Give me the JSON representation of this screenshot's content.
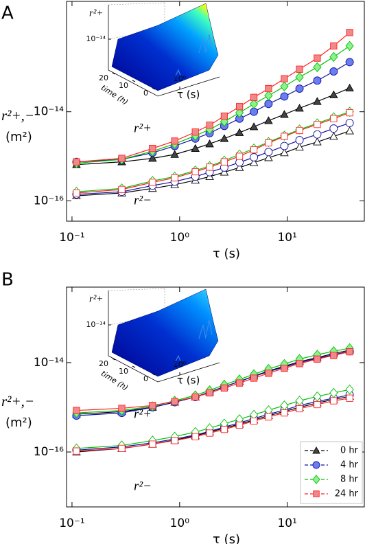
{
  "chart_data": [
    {
      "type": "line",
      "panel": "A",
      "xlabel": "τ (s)",
      "ylabel": "r²+,−",
      "yunit": "(m²)",
      "log_x": true,
      "log_y": true,
      "legend": false,
      "xlim": [
        0.089,
        52
      ],
      "ylim": [
        3.5e-17,
        3e-12
      ],
      "xticks": [
        {
          "value": 0.1,
          "label": "10⁻¹"
        },
        {
          "value": 1,
          "label": "10⁰"
        },
        {
          "value": 10,
          "label": "10¹"
        }
      ],
      "yticks": [
        {
          "value": 1e-16,
          "label": "10⁻¹⁶"
        },
        {
          "value": 1e-14,
          "label": "10⁻¹⁴"
        }
      ],
      "annotations": [
        "r²+",
        "r²−"
      ],
      "x": [
        0.11,
        0.29,
        0.56,
        0.9,
        1.4,
        1.9,
        2.6,
        3.6,
        4.9,
        6.7,
        9.4,
        13,
        19,
        27,
        38
      ],
      "series": [
        {
          "marker": "triangle",
          "color": "#000000",
          "fill": "#444444",
          "values": [
            6.5e-16,
            7.5e-16,
            9e-16,
            1.1e-15,
            1.5e-15,
            1.9e-15,
            2.5e-15,
            3.4e-15,
            4.6e-15,
            6.3e-15,
            8.7e-15,
            1.2e-14,
            1.7e-14,
            2.4e-14,
            3.4e-14
          ]
        },
        {
          "marker": "circle",
          "color": "#1010a0",
          "fill": "#6a7ef0",
          "values": [
            7.5e-16,
            8.5e-16,
            1.2e-15,
            1.7e-15,
            2.5e-15,
            3.3e-15,
            4.8e-15,
            7e-15,
            1e-14,
            1.5e-14,
            2.2e-14,
            3.3e-14,
            5e-14,
            8e-14,
            1.3e-13
          ]
        },
        {
          "marker": "diamond",
          "color": "#00c000",
          "fill": "#8ef08e",
          "values": [
            7e-16,
            8.5e-16,
            1.3e-15,
            1.9e-15,
            2.9e-15,
            4e-15,
            6e-15,
            9.5e-15,
            1.5e-14,
            2.3e-14,
            3.7e-14,
            6e-14,
            1e-13,
            1.7e-13,
            3e-13
          ]
        },
        {
          "marker": "square",
          "color": "#ff2020",
          "fill": "#f08a8a",
          "values": [
            7.5e-16,
            9e-16,
            1.5e-15,
            2.2e-15,
            3.5e-15,
            5e-15,
            8e-15,
            1.3e-14,
            2.1e-14,
            3.3e-14,
            5.5e-14,
            9e-14,
            1.6e-13,
            3e-13,
            6e-13
          ]
        },
        {
          "marker": "triangle",
          "color": "#000000",
          "fill": "#ffffff",
          "values": [
            1.3e-16,
            1.5e-16,
            1.9e-16,
            2.3e-16,
            2.9e-16,
            3.5e-16,
            4.4e-16,
            5.6e-16,
            7.2e-16,
            9.3e-16,
            1.2e-15,
            1.6e-15,
            2.1e-15,
            2.8e-15,
            3.7e-15
          ]
        },
        {
          "marker": "circle",
          "color": "#1010a0",
          "fill": "#ffffff",
          "values": [
            1.4e-16,
            1.6e-16,
            2.2e-16,
            2.7e-16,
            3.5e-16,
            4.4e-16,
            5.6e-16,
            7.3e-16,
            9.5e-16,
            1.25e-15,
            1.7e-15,
            2.3e-15,
            3.1e-15,
            4.2e-15,
            5.6e-15
          ]
        },
        {
          "marker": "diamond",
          "color": "#00c000",
          "fill": "#ffffff",
          "values": [
            1.6e-16,
            1.9e-16,
            2.8e-16,
            3.5e-16,
            4.8e-16,
            6e-16,
            8e-16,
            1.1e-15,
            1.5e-15,
            2.1e-15,
            2.9e-15,
            4e-15,
            5.5e-15,
            7.5e-15,
            1e-14
          ]
        },
        {
          "marker": "square",
          "color": "#ff2020",
          "fill": "#ffffff",
          "values": [
            1.5e-16,
            1.8e-16,
            2.6e-16,
            3.3e-16,
            4.5e-16,
            5.7e-16,
            7.5e-16,
            1e-15,
            1.4e-15,
            2e-15,
            2.8e-15,
            3.8e-15,
            5.2e-15,
            7e-15,
            9.5e-15
          ]
        }
      ],
      "inset": {
        "zlabel": "r²+",
        "zticks": [
          {
            "value": 1e-14,
            "label": "10⁻¹⁴"
          }
        ],
        "ylabel": "time (h)",
        "yticks": [
          20,
          10,
          0
        ],
        "xlabel": "τ (s)",
        "xticks": [
          {
            "value": 1,
            "label": "10⁰"
          }
        ],
        "colormap": "jet-full"
      }
    },
    {
      "type": "line",
      "panel": "B",
      "xlabel": "τ (s)",
      "ylabel": "r²+,−",
      "yunit": "(m²)",
      "log_x": true,
      "log_y": true,
      "legend": "lower right",
      "xlim": [
        0.089,
        52
      ],
      "ylim": [
        5.9e-18,
        4.9e-13
      ],
      "xticks": [
        {
          "value": 0.1,
          "label": "10⁻¹"
        },
        {
          "value": 1,
          "label": "10⁰"
        },
        {
          "value": 10,
          "label": "10¹"
        }
      ],
      "yticks": [
        {
          "value": 1e-16,
          "label": "10⁻¹⁶"
        },
        {
          "value": 1e-14,
          "label": "10⁻¹⁴"
        }
      ],
      "annotations": [
        "r²+",
        "r²−"
      ],
      "x": [
        0.11,
        0.29,
        0.56,
        0.9,
        1.4,
        1.9,
        2.6,
        3.6,
        4.9,
        6.7,
        9.4,
        13,
        19,
        27,
        38
      ],
      "series": [
        {
          "name": "0 hr",
          "marker": "triangle",
          "color": "#000000",
          "fill": "#444444",
          "values": [
            7e-16,
            8e-16,
            1e-15,
            1.3e-15,
            1.7e-15,
            2.2e-15,
            2.9e-15,
            3.8e-15,
            5e-15,
            6.5e-15,
            8.3e-15,
            1.05e-14,
            1.3e-14,
            1.6e-14,
            1.9e-14
          ]
        },
        {
          "name": "4 hr",
          "marker": "circle",
          "color": "#1010a0",
          "fill": "#6a7ef0",
          "values": [
            6.5e-16,
            7.5e-16,
            1e-15,
            1.3e-15,
            1.7e-15,
            2.2e-15,
            2.9e-15,
            3.8e-15,
            4.9e-15,
            6.3e-15,
            8e-15,
            1e-14,
            1.25e-14,
            1.5e-14,
            1.8e-14
          ]
        },
        {
          "name": "8 hr",
          "marker": "diamond",
          "color": "#00c000",
          "fill": "#8ef08e",
          "values": [
            7.5e-16,
            8.5e-16,
            1.05e-15,
            1.4e-15,
            1.85e-15,
            2.4e-15,
            3.2e-15,
            4.2e-15,
            5.5e-15,
            7.2e-15,
            9.3e-15,
            1.2e-14,
            1.5e-14,
            1.8e-14,
            2.1e-14
          ]
        },
        {
          "name": "24 hr",
          "marker": "square",
          "color": "#ff2020",
          "fill": "#f08a8a",
          "values": [
            8.5e-16,
            9.5e-16,
            1.1e-15,
            1.35e-15,
            1.7e-15,
            2.1e-15,
            2.7e-15,
            3.5e-15,
            4.5e-15,
            5.8e-15,
            7.5e-15,
            9.5e-15,
            1.2e-14,
            1.45e-14,
            1.75e-14
          ]
        },
        {
          "marker": "triangle",
          "color": "#000000",
          "fill": "#ffffff",
          "values": [
            1e-16,
            1.2e-16,
            1.5e-16,
            1.85e-16,
            2.3e-16,
            2.8e-16,
            3.4e-16,
            4.2e-16,
            5.2e-16,
            6.5e-16,
            8.1e-16,
            1e-15,
            1.25e-15,
            1.5e-15,
            1.75e-15
          ]
        },
        {
          "marker": "circle",
          "color": "#1010a0",
          "fill": "#ffffff",
          "values": [
            1.1e-16,
            1.3e-16,
            1.6e-16,
            1.95e-16,
            2.4e-16,
            2.9e-16,
            3.6e-16,
            4.5e-16,
            5.6e-16,
            7e-16,
            8.7e-16,
            1.1e-15,
            1.35e-15,
            1.6e-15,
            1.9e-15
          ]
        },
        {
          "marker": "diamond",
          "color": "#00c000",
          "fill": "#ffffff",
          "values": [
            1.2e-16,
            1.4e-16,
            1.8e-16,
            2.2e-16,
            2.8e-16,
            3.4e-16,
            4.3e-16,
            5.4e-16,
            6.8e-16,
            8.6e-16,
            1.1e-15,
            1.4e-15,
            1.75e-15,
            2.1e-15,
            2.5e-15
          ]
        },
        {
          "marker": "square",
          "color": "#ff2020",
          "fill": "#ffffff",
          "values": [
            1.05e-16,
            1.2e-16,
            1.5e-16,
            1.8e-16,
            2.2e-16,
            2.65e-16,
            3.2e-16,
            4e-16,
            4.9e-16,
            6.1e-16,
            7.5e-16,
            9.3e-16,
            1.15e-15,
            1.4e-15,
            1.6e-15
          ]
        }
      ],
      "inset": {
        "zlabel": "r²+",
        "zticks": [
          {
            "value": 1e-14,
            "label": "10⁻¹⁴"
          }
        ],
        "ylabel": "time (h)",
        "yticks": [
          20,
          10,
          0
        ],
        "xlabel": "τ (s)",
        "xticks": [
          {
            "value": 1,
            "label": "10⁰"
          }
        ],
        "colormap": "jet-low"
      }
    }
  ]
}
